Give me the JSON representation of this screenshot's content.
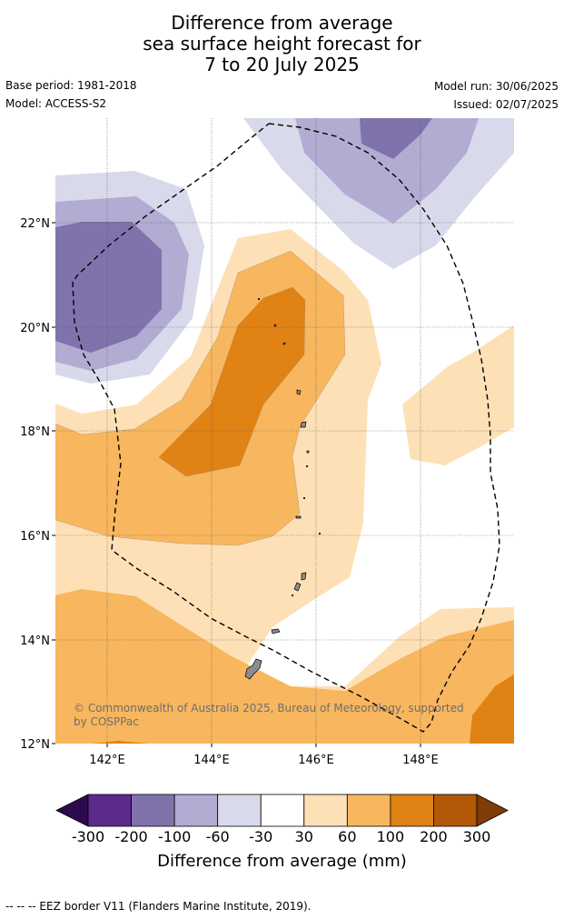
{
  "title": {
    "line1": "Difference from average",
    "line2": "sea surface height forecast for",
    "line3": "7 to 20 July 2025"
  },
  "meta": {
    "base_period": "Base period: 1981-2018",
    "model": "Model: ACCESS-S2",
    "model_run": "Model run: 30/06/2025",
    "issued": "Issued: 02/07/2025"
  },
  "map": {
    "lon_labels": [
      "142°E",
      "144°E",
      "146°E",
      "148°E"
    ],
    "lat_labels": [
      "22°N",
      "20°N",
      "18°N",
      "16°N",
      "14°N",
      "12°N"
    ],
    "credit": "© Commonwealth of Australia 2025, Bureau of Meteorology, supported by COSPPac"
  },
  "colorbar": {
    "labels": [
      "-300",
      "-200",
      "-100",
      "-60",
      "-30",
      "30",
      "60",
      "100",
      "200",
      "300"
    ],
    "colors": [
      "#2d0a4e",
      "#5b2a8c",
      "#8073ac",
      "#b2abd2",
      "#d8daeb",
      "#ffffff",
      "#fee0b6",
      "#f8b65e",
      "#e08214",
      "#b35806",
      "#7f3b08"
    ],
    "title": "Difference from average (mm)"
  },
  "footer": "--  --  -- EEZ border V11 (Flanders Marine Institute, 2019)."
}
